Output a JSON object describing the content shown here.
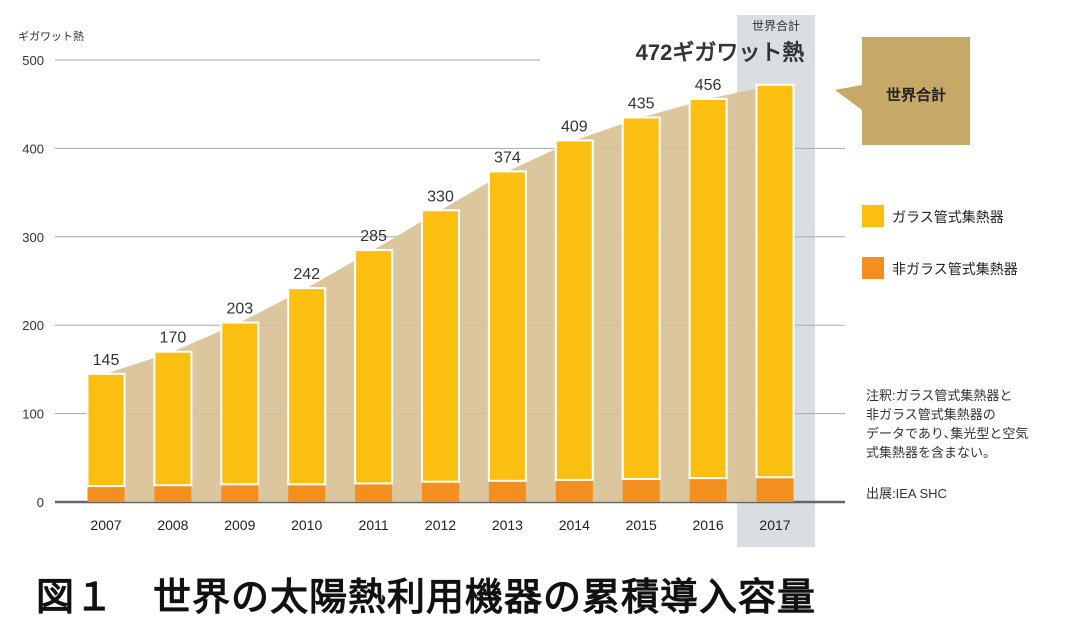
{
  "chart_data": {
    "type": "bar",
    "title": "図１　世界の太陽熱利用機器の累積導入容量",
    "ylabel": "ギガワット熱",
    "ylim": [
      0,
      500
    ],
    "yticks": [
      0,
      100,
      200,
      300,
      400,
      500
    ],
    "categories": [
      "2007",
      "2008",
      "2009",
      "2010",
      "2011",
      "2012",
      "2013",
      "2014",
      "2015",
      "2016",
      "2017"
    ],
    "totals": [
      145,
      170,
      203,
      242,
      285,
      330,
      374,
      409,
      435,
      456,
      472
    ],
    "total_labels": [
      "145",
      "170",
      "203",
      "242",
      "285",
      "330",
      "374",
      "409",
      "435",
      "456"
    ],
    "series": [
      {
        "name": "ガラス管式集熱器",
        "color": "#fbbf12",
        "values": [
          127,
          151,
          183,
          222,
          264,
          307,
          350,
          384,
          409,
          429,
          444
        ]
      },
      {
        "name": "非ガラス管式集熱器",
        "color": "#f28f1f",
        "values": [
          18,
          19,
          20,
          20,
          21,
          23,
          24,
          25,
          26,
          27,
          28
        ]
      }
    ],
    "highlight": {
      "category": "2017",
      "label_small": "世界合計",
      "label_big": "472ギガワット熱"
    },
    "callout": "世界合計",
    "note": [
      "注釈:ガラス管式集熱器と",
      "非ガラス管式集熱器の",
      "データであり､集光型と空気",
      "式集熱器を含まない。"
    ],
    "source": "出展:IEA SHC",
    "area_color": "#d8c092",
    "callout_color": "#c6a867"
  }
}
